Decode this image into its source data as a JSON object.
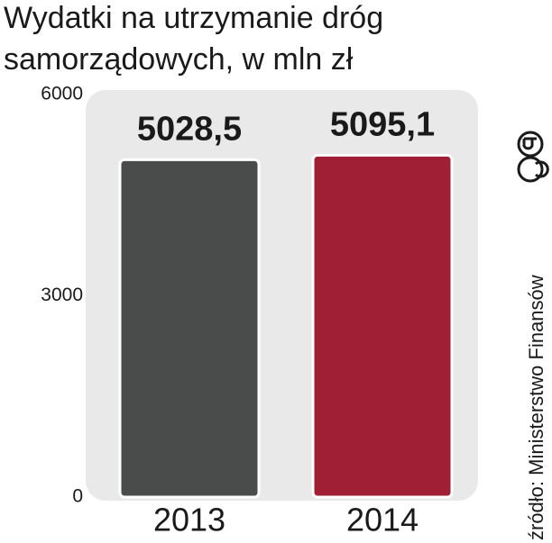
{
  "chart_data": {
    "type": "bar",
    "title": [
      "Wydatki na utrzymanie dróg",
      "samorządowych, w mln zł"
    ],
    "categories": [
      "2013",
      "2014"
    ],
    "values": [
      5028.5,
      5095.1
    ],
    "value_labels": [
      "5028,5",
      "5095,1"
    ],
    "colors": [
      "#4a4c4b",
      "#a01f35"
    ],
    "ylim": [
      0,
      6000
    ],
    "yticks": [
      0,
      3000,
      6000
    ],
    "source": "źródło: Ministerstwo Finansów"
  }
}
